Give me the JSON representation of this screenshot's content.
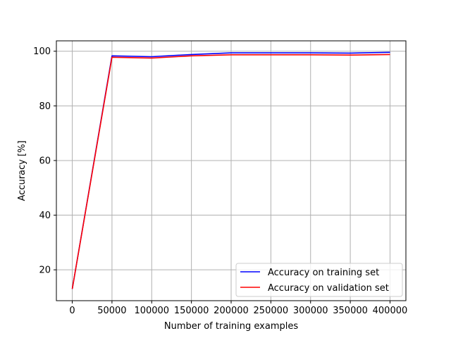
{
  "chart_data": {
    "type": "line",
    "xlabel": "Number of training examples",
    "ylabel": "Accuracy [%]",
    "xlim": [
      -20000,
      420000
    ],
    "ylim": [
      8.7,
      103.8
    ],
    "xticks": [
      0,
      50000,
      100000,
      150000,
      200000,
      250000,
      300000,
      350000,
      400000
    ],
    "yticks": [
      20,
      40,
      60,
      80,
      100
    ],
    "grid": true,
    "legend_position": "lower-right",
    "x": [
      0,
      50000,
      100000,
      150000,
      200000,
      250000,
      300000,
      350000,
      400000
    ],
    "series": [
      {
        "name": "Accuracy on training set",
        "color": "#0000ff",
        "values": [
          13,
          98.3,
          98.0,
          98.8,
          99.4,
          99.4,
          99.4,
          99.3,
          99.6
        ]
      },
      {
        "name": "Accuracy on validation set",
        "color": "#ff0000",
        "values": [
          13,
          97.8,
          97.5,
          98.3,
          98.7,
          98.7,
          98.7,
          98.6,
          98.8
        ]
      }
    ]
  }
}
